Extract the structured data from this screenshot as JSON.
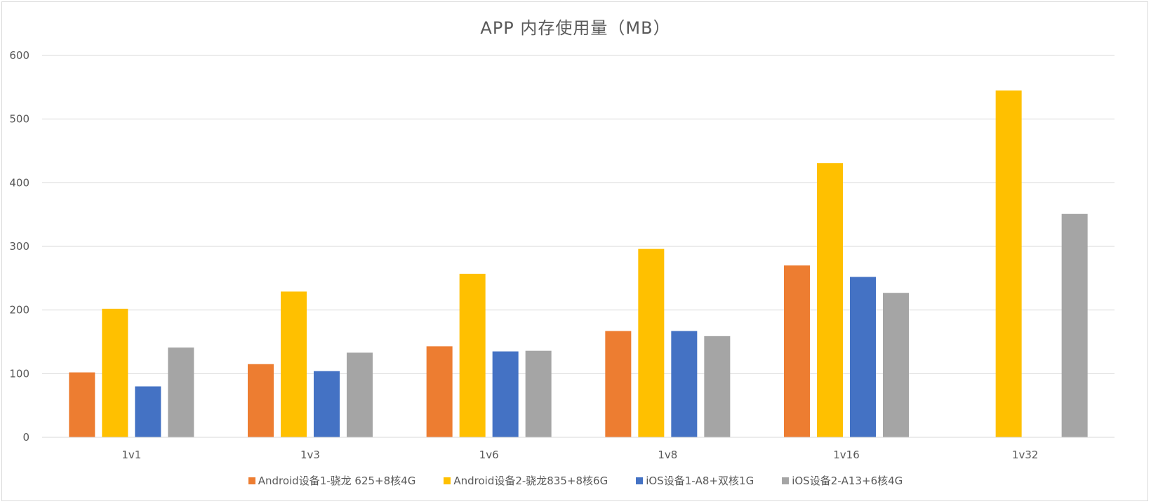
{
  "chart_data": {
    "type": "bar",
    "title": "APP 内存使用量（MB）",
    "categories": [
      "1v1",
      "1v3",
      "1v6",
      "1v8",
      "1v16",
      "1v32"
    ],
    "ylim": [
      0,
      600
    ],
    "yticks": [
      0,
      100,
      200,
      300,
      400,
      500,
      600
    ],
    "grid": true,
    "legend_position": "bottom",
    "series": [
      {
        "name": "Android设备1-骁龙 625+8核4G",
        "color": "#ed7d31",
        "values": [
          102,
          115,
          143,
          167,
          270,
          null
        ]
      },
      {
        "name": "Android设备2-骁龙835+8核6G",
        "color": "#ffc000",
        "values": [
          202,
          229,
          257,
          296,
          431,
          545
        ]
      },
      {
        "name": "iOS设备1-A8+双核1G",
        "color": "#4472c4",
        "values": [
          80,
          104,
          135,
          167,
          252,
          null
        ]
      },
      {
        "name": "iOS设备2-A13+6核4G",
        "color": "#a5a5a5",
        "values": [
          141,
          133,
          136,
          159,
          227,
          351
        ]
      }
    ]
  }
}
